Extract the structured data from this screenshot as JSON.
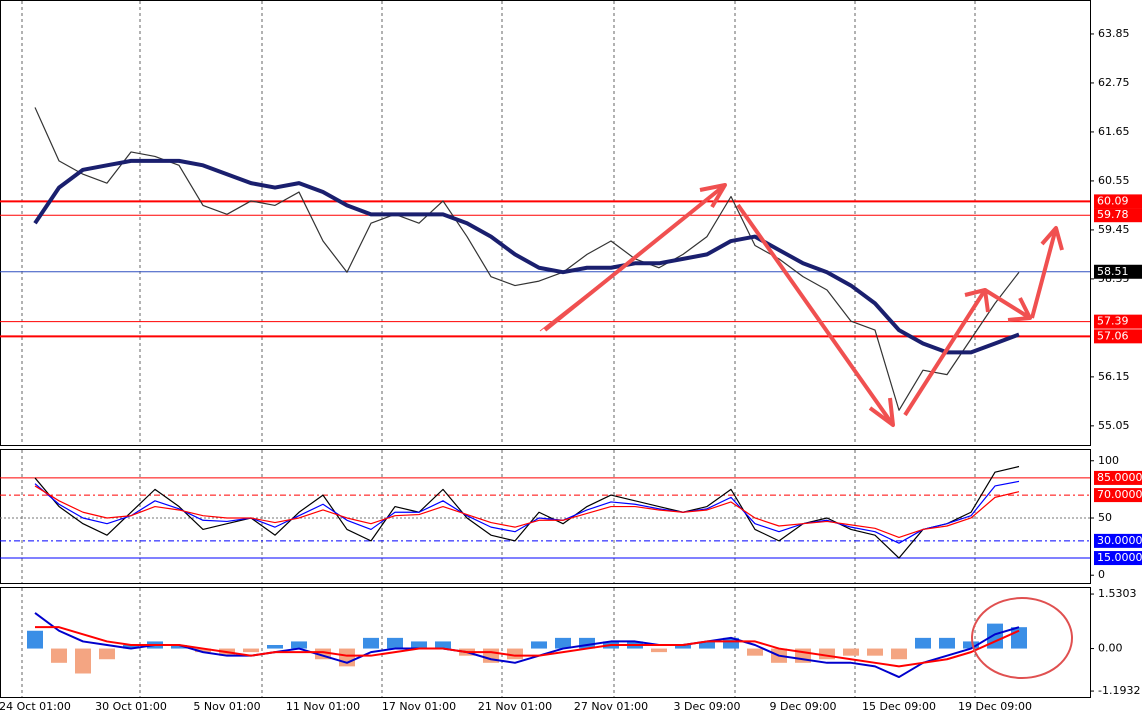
{
  "chart_data": [
    {
      "type": "line",
      "categories": [
        "24 Oct 01:00",
        null,
        null,
        null,
        "30 Oct 01:00",
        null,
        null,
        null,
        "5 Nov 01:00",
        null,
        null,
        null,
        "11 Nov 01:00",
        null,
        null,
        null,
        "17 Nov 01:00",
        null,
        null,
        null,
        "21 Nov 01:00",
        null,
        null,
        null,
        "27 Nov 01:00",
        null,
        null,
        null,
        "3 Dec 09:00",
        null,
        null,
        null,
        "9 Dec 09:00",
        null,
        null,
        null,
        "15 Dec 09:00",
        null,
        null,
        null,
        "19 Dec 09:00",
        null
      ],
      "series": [
        {
          "color": "#333333",
          "values": [
            62.2,
            61.0,
            60.7,
            60.5,
            61.2,
            61.1,
            60.9,
            60.0,
            59.8,
            60.1,
            60.0,
            60.3,
            59.2,
            58.5,
            59.6,
            59.8,
            59.6,
            60.1,
            59.3,
            58.4,
            58.2,
            58.3,
            58.5,
            58.9,
            59.2,
            58.8,
            58.6,
            58.9,
            59.3,
            60.2,
            59.1,
            58.8,
            58.4,
            58.1,
            57.4,
            57.2,
            55.4,
            56.3,
            56.2,
            57.0,
            57.8,
            58.5
          ]
        },
        {
          "color": "#1a1f6e",
          "values": [
            59.6,
            60.4,
            60.8,
            60.9,
            61.0,
            61.0,
            61.0,
            60.9,
            60.7,
            60.5,
            60.4,
            60.5,
            60.3,
            60.0,
            59.8,
            59.8,
            59.8,
            59.8,
            59.6,
            59.3,
            58.9,
            58.6,
            58.5,
            58.6,
            58.6,
            58.7,
            58.7,
            58.8,
            58.9,
            59.2,
            59.3,
            59.0,
            58.7,
            58.5,
            58.2,
            57.8,
            57.2,
            56.9,
            56.7,
            56.7,
            56.9,
            57.1
          ]
        }
      ],
      "ylim": [
        54.62,
        64.59
      ],
      "yticks": [
        63.85,
        62.75,
        61.65,
        60.55,
        59.45,
        58.35,
        56.15,
        55.05
      ],
      "levels": [
        {
          "value": 60.09,
          "color": "#ff0000"
        },
        {
          "value": 59.78,
          "color": "#ff0000"
        },
        {
          "value": 58.51,
          "color": "#3050c0"
        },
        {
          "value": 57.39,
          "color": "#ff0000"
        },
        {
          "value": 57.06,
          "color": "#ff0000"
        }
      ]
    },
    {
      "type": "line",
      "series": [
        {
          "color": "#000000",
          "values": [
            85,
            60,
            45,
            35,
            55,
            75,
            60,
            40,
            45,
            50,
            35,
            55,
            70,
            40,
            30,
            60,
            55,
            75,
            50,
            35,
            30,
            55,
            45,
            60,
            70,
            65,
            60,
            55,
            60,
            75,
            40,
            30,
            45,
            50,
            40,
            35,
            15,
            40,
            45,
            55,
            90,
            95
          ]
        },
        {
          "color": "#0000ff",
          "values": [
            80,
            62,
            50,
            45,
            52,
            65,
            58,
            48,
            47,
            50,
            42,
            52,
            62,
            48,
            40,
            55,
            55,
            65,
            52,
            42,
            38,
            50,
            48,
            57,
            64,
            62,
            58,
            55,
            58,
            68,
            45,
            38,
            45,
            48,
            42,
            38,
            28,
            40,
            45,
            52,
            78,
            82
          ]
        },
        {
          "color": "#ff0000",
          "values": [
            78,
            65,
            55,
            50,
            52,
            60,
            57,
            52,
            50,
            50,
            46,
            50,
            57,
            50,
            45,
            52,
            53,
            60,
            53,
            46,
            42,
            48,
            48,
            54,
            60,
            60,
            57,
            55,
            57,
            64,
            50,
            43,
            45,
            47,
            44,
            41,
            33,
            40,
            43,
            50,
            68,
            73
          ]
        }
      ],
      "ylim": [
        -6.8,
        109.4
      ],
      "yticks": [
        100,
        50,
        0
      ],
      "levels": [
        {
          "value": 85,
          "label": "85.0000",
          "color": "#ff0000"
        },
        {
          "value": 70,
          "label": "70.0000",
          "color": "#ff0000"
        },
        {
          "value": 30,
          "label": "30.0000",
          "color": "#0000ff"
        },
        {
          "value": 15,
          "label": "15.0000",
          "color": "#0000ff"
        }
      ]
    },
    {
      "type": "macd",
      "histogram": {
        "color_up": "#3a8ee6",
        "color_down": "#f4a582",
        "values": [
          0.5,
          -0.4,
          -0.7,
          -0.3,
          0.1,
          0.2,
          0.1,
          -0.1,
          -0.2,
          -0.1,
          0.1,
          0.2,
          -0.3,
          -0.5,
          0.3,
          0.3,
          0.2,
          0.2,
          -0.2,
          -0.4,
          -0.3,
          0.2,
          0.3,
          0.3,
          0.2,
          0.2,
          -0.1,
          0.1,
          0.2,
          0.3,
          -0.2,
          -0.4,
          -0.4,
          -0.3,
          -0.2,
          -0.2,
          -0.3,
          0.3,
          0.3,
          0.2,
          0.7,
          0.6
        ]
      },
      "series": [
        {
          "color": "#0000cc",
          "values": [
            1.0,
            0.5,
            0.2,
            0.1,
            0.0,
            0.1,
            0.1,
            -0.1,
            -0.2,
            -0.2,
            -0.1,
            0.0,
            -0.2,
            -0.4,
            -0.1,
            0.0,
            0.0,
            0.0,
            -0.1,
            -0.3,
            -0.4,
            -0.2,
            0.0,
            0.1,
            0.2,
            0.2,
            0.1,
            0.1,
            0.2,
            0.3,
            0.1,
            -0.2,
            -0.3,
            -0.4,
            -0.4,
            -0.5,
            -0.8,
            -0.4,
            -0.2,
            0.0,
            0.4,
            0.6
          ]
        },
        {
          "color": "#ff0000",
          "values": [
            0.6,
            0.6,
            0.4,
            0.2,
            0.1,
            0.1,
            0.1,
            0.0,
            -0.1,
            -0.2,
            -0.1,
            -0.1,
            -0.1,
            -0.2,
            -0.2,
            -0.1,
            0.0,
            0.0,
            -0.1,
            -0.1,
            -0.2,
            -0.2,
            -0.1,
            0.0,
            0.1,
            0.1,
            0.1,
            0.1,
            0.2,
            0.2,
            0.2,
            0.0,
            -0.1,
            -0.2,
            -0.3,
            -0.4,
            -0.5,
            -0.4,
            -0.3,
            -0.1,
            0.2,
            0.5
          ]
        }
      ],
      "ylim": [
        -1.36,
        1.7
      ],
      "yticks": [
        1.5303,
        {
          "value": 0,
          "label": "0.00"
        },
        -1.1932
      ]
    }
  ]
}
